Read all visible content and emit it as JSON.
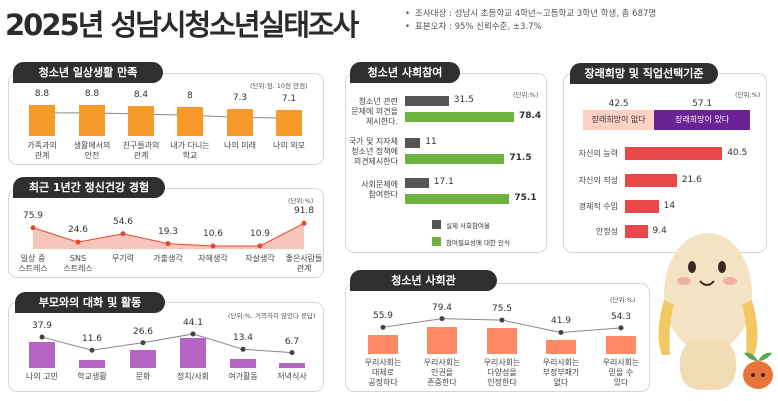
{
  "header": {
    "title": "2025년 성남시청소년실태조사",
    "notes": [
      "조사대상 : 성남시 초등학교 4학년~고등학교 3학년 학생, 총 687명",
      "표본오차 : 95% 신뢰수준, ±3.7%"
    ]
  },
  "colors": {
    "orange": "#f79a2a",
    "salmon": "#f0a090",
    "red_line": "#e8472f",
    "purple": "#b565c4",
    "gray": "#555555",
    "green": "#6db33f",
    "coral": "#ff8a65",
    "crimson": "#e94848",
    "deep_purple": "#6a2395",
    "pink": "#ffd0c4"
  },
  "chart_data": [
    {
      "id": "daily",
      "type": "bar",
      "title": "청소년 일상생활 만족",
      "unit": "(단위:점, 10점 만점)",
      "categories": [
        "가족과의\n관계",
        "생활에서의\n안전",
        "친구들과의\n관계",
        "내가 다니는\n학교",
        "나의 미래",
        "나의 외모"
      ],
      "values": [
        8.8,
        8.8,
        8.4,
        8,
        7.3,
        7.1
      ],
      "value_labels": [
        "8.8",
        "8.8",
        "8.4",
        "8",
        "7.3",
        "7.1"
      ],
      "overlay_line": true
    },
    {
      "id": "mental",
      "type": "area",
      "title": "최근 1년간 정신건강 경험",
      "unit": "(단위:%)",
      "categories": [
        "일상 중\n스트레스",
        "SNS\n스트레스",
        "무기력",
        "가출생각",
        "자해생각",
        "자살생각",
        "좋은사람들\n관계"
      ],
      "values": [
        75.9,
        24.6,
        54.6,
        19.3,
        10.6,
        10.9,
        91.8
      ],
      "value_labels": [
        "75.9",
        "24.6",
        "54.6",
        "19.3",
        "10.6",
        "10.9",
        "91.8"
      ]
    },
    {
      "id": "parents",
      "type": "bar",
      "title": "부모와의 대화 및 활동",
      "unit": "(단위:%, 거의하지 않았다 응답)",
      "categories": [
        "나의 고민",
        "학교생활",
        "문화",
        "정치/사회",
        "여가활동",
        "저녁식사"
      ],
      "values": [
        37.9,
        11.6,
        26.6,
        44.1,
        13.4,
        6.7
      ],
      "value_labels": [
        "37.9",
        "11.6",
        "26.6",
        "44.1",
        "13.4",
        "6.7"
      ],
      "overlay_line": true
    },
    {
      "id": "participation",
      "type": "bar",
      "orientation": "horizontal",
      "title": "청소년 사회참여",
      "unit": "(단위:%)",
      "categories": [
        "청소년 관련\n문제에 의견을\n제시한다.",
        "국가 및 지자체\n청소년 정책에\n의견제시한다",
        "사회문제에\n참여한다"
      ],
      "series": [
        {
          "name": "실제 사회참여율",
          "values": [
            31.5,
            11,
            17.1
          ],
          "labels": [
            "31.5",
            "11",
            "17.1"
          ]
        },
        {
          "name": "참여필요성에 대한 인식",
          "values": [
            78.4,
            71.5,
            75.1
          ],
          "labels": [
            "78.4",
            "71.5",
            "75.1"
          ]
        }
      ],
      "legend": "bottom"
    },
    {
      "id": "society",
      "type": "bar",
      "title": "청소년 사회관",
      "unit": "(단위:%)",
      "categories": [
        "우리사회는\n대체로\n공정하다",
        "우리사회는\n인권을\n존중한다",
        "우리사회는\n다양성을\n인정한다",
        "우리사회는\n부정부패가\n없다",
        "우리사회는\n믿을 수\n있다"
      ],
      "values": [
        55.9,
        79.4,
        75.5,
        41.9,
        54.3
      ],
      "value_labels": [
        "55.9",
        "79.4",
        "75.5",
        "41.9",
        "54.3"
      ],
      "overlay_line": true
    },
    {
      "id": "future",
      "type": "bar",
      "orientation": "horizontal",
      "title": "장래희망 및 직업선택기준",
      "unit": "(단위:%)",
      "stacked": {
        "categories": [
          "장래희망이 없다",
          "장래희망이 있다"
        ],
        "values": [
          42.5,
          57.1
        ],
        "labels": [
          "42.5",
          "57.1"
        ]
      },
      "categories": [
        "자신의 능력",
        "자신의 적성",
        "경제적 수입",
        "안정성"
      ],
      "values": [
        40.5,
        21.6,
        14,
        9.4
      ],
      "value_labels": [
        "40.5",
        "21.6",
        "14",
        "9.4"
      ]
    }
  ]
}
